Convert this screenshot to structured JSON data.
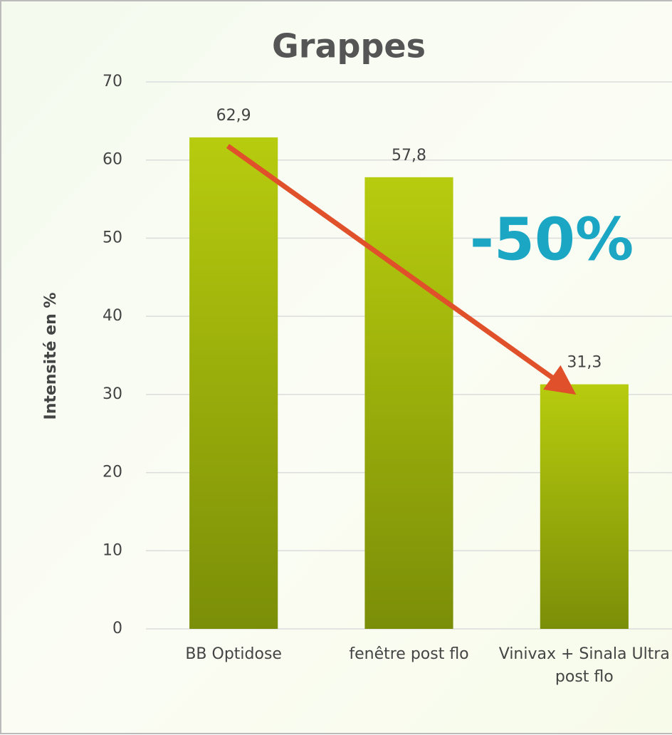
{
  "chart_data": {
    "type": "bar",
    "title": "Grappes",
    "y_label": "Intensité en %",
    "annotation": "-50%",
    "categories": [
      "BB Optidose",
      "fenêtre post flo",
      "Vinivax + Sinala Ultra post flo"
    ],
    "values": [
      62.9,
      57.8,
      31.3
    ],
    "value_labels": [
      "62,9",
      "57,8",
      "31,3"
    ],
    "ylim": [
      0,
      70
    ],
    "yticks": [
      0,
      10,
      20,
      30,
      40,
      50,
      60,
      70
    ],
    "grid": true
  }
}
